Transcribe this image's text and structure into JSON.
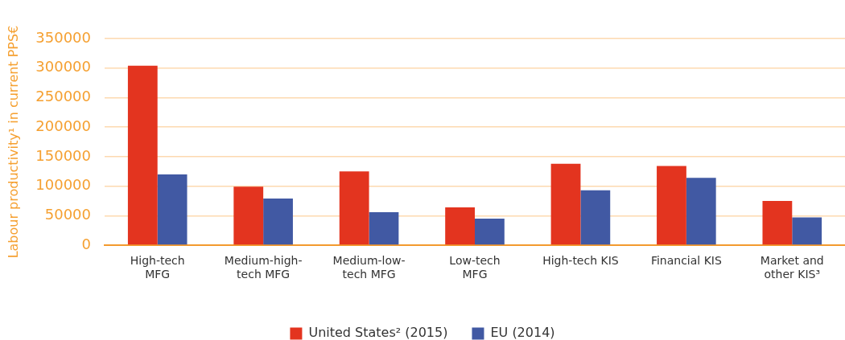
{
  "chart_data": {
    "type": "bar",
    "ylabel": "Labour productivity¹ in current PPS€",
    "categories": [
      "High-tech\nMFG",
      "Medium-high-\ntech MFG",
      "Medium-low-\ntech MFG",
      "Low-tech\nMFG",
      "High-tech KIS",
      "Financial KIS",
      "Market and\nother KIS³"
    ],
    "series": [
      {
        "name": "United States² (2015)",
        "color": "#e3341f",
        "values": [
          304000,
          99000,
          125000,
          64000,
          138000,
          134000,
          75000
        ]
      },
      {
        "name": "EU (2014)",
        "color": "#4159a3",
        "values": [
          120000,
          79000,
          56000,
          45000,
          93000,
          114000,
          47000
        ]
      }
    ],
    "ylim": [
      0,
      350000
    ],
    "yticks": [
      0,
      50000,
      100000,
      150000,
      200000,
      250000,
      300000,
      350000
    ],
    "grid": "y",
    "legend": "bottom"
  }
}
